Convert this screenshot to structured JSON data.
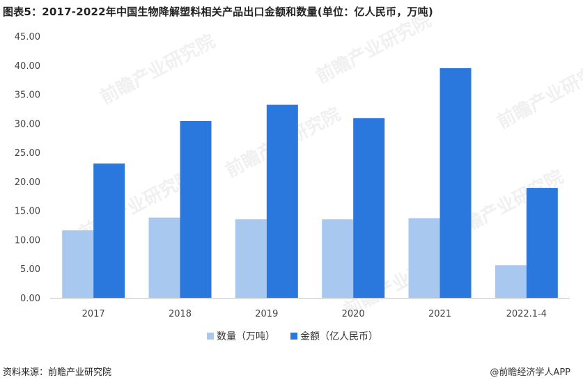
{
  "header": {
    "title": "图表5：2017-2022年中国生物降解塑料相关产品出口金额和数量(单位：亿人民币，万吨)"
  },
  "footer": {
    "source": "资料来源：前瞻产业研究院",
    "credit": "@前瞻经济学人APP"
  },
  "watermark": {
    "text": "前瞻产业研究院"
  },
  "colors": {
    "series1": "#a9c8ef",
    "series2": "#2a78de",
    "axis": "#999999",
    "tick_text": "#444444"
  },
  "chart_data": {
    "type": "bar",
    "categories": [
      "2017",
      "2018",
      "2019",
      "2020",
      "2021",
      "2022.1-4"
    ],
    "series": [
      {
        "name": "数量（万吨）",
        "values": [
          11.6,
          13.8,
          13.5,
          13.5,
          13.7,
          5.6
        ]
      },
      {
        "name": "金额（亿人民币）",
        "values": [
          23.1,
          30.4,
          33.2,
          30.9,
          39.5,
          18.9
        ]
      }
    ],
    "ylim": [
      0,
      45
    ],
    "yticks": [
      "0.00",
      "5.00",
      "10.00",
      "15.00",
      "20.00",
      "25.00",
      "30.00",
      "35.00",
      "40.00",
      "45.00"
    ],
    "legend": "bottom",
    "grid": false
  }
}
